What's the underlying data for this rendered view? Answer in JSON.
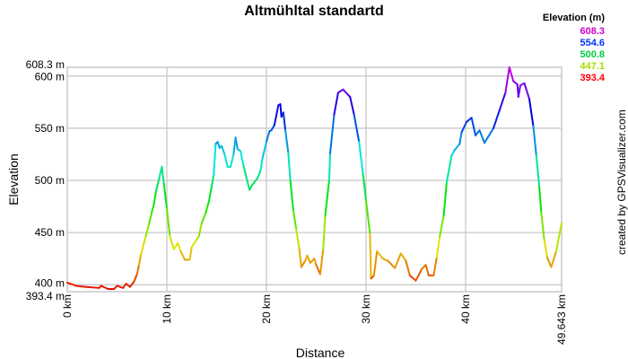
{
  "chart_data": {
    "type": "line",
    "title": "Altmühltal standartd",
    "xlabel": "Distance",
    "ylabel": "Elevation",
    "xlim": [
      0,
      49.643
    ],
    "ylim": [
      393.4,
      608.3
    ],
    "grid": true,
    "x_ticks": [
      {
        "v": 0,
        "label": "0 km"
      },
      {
        "v": 10,
        "label": "10 km"
      },
      {
        "v": 20,
        "label": "20 km"
      },
      {
        "v": 30,
        "label": "30 km"
      },
      {
        "v": 40,
        "label": "40 km"
      },
      {
        "v": 49.643,
        "label": "49.643 km"
      }
    ],
    "y_ticks": [
      {
        "v": 608.3,
        "label": "608.3 m"
      },
      {
        "v": 600,
        "label": "600 m"
      },
      {
        "v": 550,
        "label": "550 m"
      },
      {
        "v": 500,
        "label": "500 m"
      },
      {
        "v": 450,
        "label": "450 m"
      },
      {
        "v": 400,
        "label": "400 m"
      },
      {
        "v": 393.4,
        "label": "393.4 m"
      }
    ],
    "legend": {
      "title": "Elevation (m)",
      "placement": "top-right",
      "entries": [
        {
          "label": "608.3",
          "color": "#cc00cc"
        },
        {
          "label": "554.6",
          "color": "#0033ff"
        },
        {
          "label": "500.8",
          "color": "#00cc44"
        },
        {
          "label": "447.1",
          "color": "#aadd00"
        },
        {
          "label": "393.4",
          "color": "#ff0000"
        }
      ]
    },
    "color_scale": "elevation gradient red-yellow-green-cyan-blue-magenta",
    "points": [
      [
        0,
        402
      ],
      [
        0.9,
        399
      ],
      [
        1.8,
        398
      ],
      [
        3.2,
        397
      ],
      [
        3.4,
        399
      ],
      [
        4.1,
        396
      ],
      [
        4.7,
        396
      ],
      [
        5.0,
        399
      ],
      [
        5.6,
        397
      ],
      [
        5.9,
        401
      ],
      [
        6.3,
        398
      ],
      [
        6.7,
        403
      ],
      [
        7.0,
        410
      ],
      [
        7.2,
        419
      ],
      [
        7.4,
        429
      ],
      [
        7.7,
        440
      ],
      [
        7.9,
        447
      ],
      [
        8.2,
        458
      ],
      [
        8.5,
        470
      ],
      [
        8.7,
        477
      ],
      [
        8.9,
        489
      ],
      [
        9.2,
        501
      ],
      [
        9.5,
        513
      ],
      [
        9.7,
        497
      ],
      [
        10.0,
        473
      ],
      [
        10.3,
        447
      ],
      [
        10.7,
        434
      ],
      [
        11.1,
        440
      ],
      [
        11.4,
        432
      ],
      [
        11.8,
        424
      ],
      [
        12.3,
        424
      ],
      [
        12.5,
        436
      ],
      [
        12.9,
        442
      ],
      [
        13.2,
        446
      ],
      [
        13.5,
        459
      ],
      [
        13.9,
        469
      ],
      [
        14.2,
        479
      ],
      [
        14.5,
        494
      ],
      [
        14.7,
        505
      ],
      [
        14.9,
        535
      ],
      [
        15.1,
        537
      ],
      [
        15.3,
        531
      ],
      [
        15.5,
        533
      ],
      [
        15.8,
        525
      ],
      [
        16.1,
        513
      ],
      [
        16.4,
        513
      ],
      [
        16.7,
        525
      ],
      [
        16.9,
        541
      ],
      [
        17.1,
        530
      ],
      [
        17.4,
        528
      ],
      [
        17.7,
        514
      ],
      [
        18.3,
        491
      ],
      [
        18.6,
        496
      ],
      [
        19.1,
        502
      ],
      [
        19.4,
        509
      ],
      [
        19.6,
        521
      ],
      [
        20.0,
        537
      ],
      [
        20.3,
        547
      ],
      [
        20.5,
        548
      ],
      [
        20.8,
        553
      ],
      [
        21.2,
        572
      ],
      [
        21.4,
        573
      ],
      [
        21.5,
        561
      ],
      [
        21.7,
        565
      ],
      [
        21.9,
        548
      ],
      [
        22.2,
        526
      ],
      [
        22.4,
        500
      ],
      [
        22.7,
        471
      ],
      [
        23.0,
        453
      ],
      [
        23.3,
        434
      ],
      [
        23.5,
        417
      ],
      [
        23.9,
        423
      ],
      [
        24.1,
        428
      ],
      [
        24.4,
        421
      ],
      [
        24.8,
        425
      ],
      [
        25.0,
        419
      ],
      [
        25.4,
        410
      ],
      [
        25.7,
        434
      ],
      [
        25.9,
        466
      ],
      [
        26.3,
        500
      ],
      [
        26.4,
        526
      ],
      [
        26.8,
        563
      ],
      [
        27.2,
        584
      ],
      [
        27.7,
        587
      ],
      [
        28.4,
        580
      ],
      [
        28.8,
        563
      ],
      [
        29.3,
        537
      ],
      [
        29.7,
        506
      ],
      [
        30.0,
        481
      ],
      [
        30.4,
        449
      ],
      [
        30.5,
        406
      ],
      [
        30.8,
        409
      ],
      [
        31.1,
        432
      ],
      [
        31.7,
        425
      ],
      [
        32.2,
        423
      ],
      [
        32.9,
        416
      ],
      [
        33.5,
        430
      ],
      [
        34.0,
        423
      ],
      [
        34.4,
        409
      ],
      [
        35.0,
        404
      ],
      [
        35.6,
        415
      ],
      [
        36.0,
        419
      ],
      [
        36.3,
        409
      ],
      [
        36.8,
        409
      ],
      [
        37.1,
        426
      ],
      [
        37.4,
        446
      ],
      [
        37.8,
        466
      ],
      [
        38.1,
        498
      ],
      [
        38.6,
        524
      ],
      [
        38.9,
        529
      ],
      [
        39.4,
        535
      ],
      [
        39.6,
        546
      ],
      [
        40.1,
        556
      ],
      [
        40.6,
        560
      ],
      [
        41.0,
        543
      ],
      [
        41.4,
        548
      ],
      [
        41.9,
        536
      ],
      [
        42.8,
        550
      ],
      [
        43.4,
        567
      ],
      [
        44.0,
        584
      ],
      [
        44.4,
        608.3
      ],
      [
        44.8,
        595
      ],
      [
        45.2,
        592
      ],
      [
        45.3,
        580
      ],
      [
        45.5,
        591
      ],
      [
        45.9,
        593
      ],
      [
        46.4,
        578
      ],
      [
        46.8,
        552
      ],
      [
        47.1,
        524
      ],
      [
        47.4,
        494
      ],
      [
        47.6,
        469
      ],
      [
        47.9,
        443
      ],
      [
        48.2,
        426
      ],
      [
        48.6,
        417
      ],
      [
        49.1,
        432
      ],
      [
        49.643,
        459
      ]
    ]
  },
  "credit": "created by GPSVisualizer.com"
}
